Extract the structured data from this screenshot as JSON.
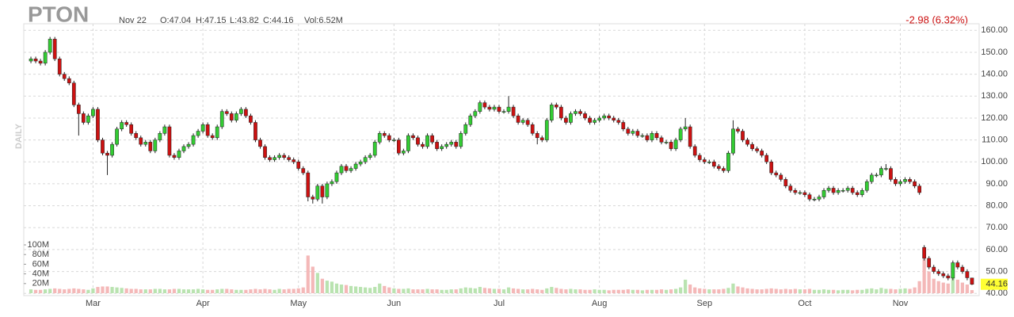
{
  "header": {
    "ticker": "PTON",
    "date": "Nov 22",
    "open": "O:47.04",
    "high": "H:47.15",
    "low": "L:43.82",
    "close": "C:44.16",
    "volume": "Vol:6.52M",
    "change": "-2.98 (6.32%)",
    "period": "DAILY"
  },
  "chart_data": {
    "type": "candlestick",
    "xlim": [
      -1.5,
      198.5
    ],
    "xticks": [
      {
        "value": 13,
        "label": "Mar"
      },
      {
        "value": 36,
        "label": "Apr"
      },
      {
        "value": 56,
        "label": "May"
      },
      {
        "value": 76,
        "label": "Jun"
      },
      {
        "value": 98,
        "label": "Jul"
      },
      {
        "value": 119,
        "label": "Aug"
      },
      {
        "value": 141,
        "label": "Sep"
      },
      {
        "value": 162,
        "label": "Oct"
      },
      {
        "value": 182,
        "label": "Nov"
      }
    ],
    "ylim": [
      39,
      163
    ],
    "yticks": [
      {
        "value": 40,
        "label": "40.00"
      },
      {
        "value": 50,
        "label": "50.00"
      },
      {
        "value": 60,
        "label": "60.00"
      },
      {
        "value": 70,
        "label": "70.00"
      },
      {
        "value": 80,
        "label": "80.00"
      },
      {
        "value": 90,
        "label": "90.00"
      },
      {
        "value": 100,
        "label": "100.00"
      },
      {
        "value": 110,
        "label": "110.00"
      },
      {
        "value": 120,
        "label": "120.00"
      },
      {
        "value": 130,
        "label": "130.00"
      },
      {
        "value": 140,
        "label": "140.00"
      },
      {
        "value": 150,
        "label": "150.00"
      },
      {
        "value": 160,
        "label": "160.00"
      }
    ],
    "y2lim": [
      0,
      100
    ],
    "y2ticks": [
      {
        "value": 20,
        "label": "20M"
      },
      {
        "value": 40,
        "label": "40M"
      },
      {
        "value": 60,
        "label": "60M"
      },
      {
        "value": 80,
        "label": "80M"
      },
      {
        "value": 100,
        "label": "100M"
      }
    ],
    "grid": true,
    "up_color": "#33cc33",
    "down_color": "#cc1111",
    "volume_up_color": "#b9e3b0",
    "volume_down_color": "#f4b8b8",
    "last_price_color": "#ffff33",
    "open": [
      146,
      147,
      146,
      145,
      150,
      156,
      147,
      140,
      138,
      136,
      126,
      122,
      118,
      121,
      124,
      110,
      104,
      103,
      108,
      115,
      118,
      117,
      113,
      111,
      108,
      109,
      105,
      110,
      113,
      116,
      103,
      102,
      105,
      107,
      108,
      112,
      114,
      117,
      112,
      111,
      116,
      123,
      122,
      119,
      122,
      124,
      121,
      118,
      110,
      107,
      102,
      101,
      102,
      103,
      102,
      101,
      100,
      97,
      95,
      84,
      83,
      89,
      84,
      90,
      91,
      95,
      98,
      96,
      97,
      99,
      100,
      102,
      103,
      109,
      113,
      112,
      110,
      110,
      104,
      105,
      112,
      111,
      108,
      107,
      112,
      109,
      106,
      107,
      108,
      109,
      107,
      113,
      117,
      121,
      123,
      127,
      125,
      124,
      125,
      123,
      123,
      125,
      121,
      118,
      119,
      117,
      113,
      111,
      110,
      119,
      126,
      125,
      120,
      118,
      122,
      123,
      122,
      120,
      118,
      119,
      120,
      121,
      120,
      119,
      118,
      115,
      113,
      114,
      112,
      112,
      110,
      113,
      111,
      109,
      109,
      106,
      110,
      115,
      116,
      107,
      103,
      101,
      100,
      100,
      98,
      97,
      96,
      104,
      115,
      114,
      110,
      108,
      106,
      105,
      103,
      100,
      95,
      94,
      92,
      89,
      87,
      86,
      86,
      85,
      83,
      83,
      84,
      87,
      88,
      86,
      87,
      87,
      88,
      86,
      85,
      87,
      91,
      94,
      94,
      97,
      97,
      92,
      90,
      91,
      92,
      91,
      89,
      61,
      56,
      52,
      50,
      49,
      48,
      47,
      54,
      52,
      50,
      47.04
    ],
    "high": [
      148,
      148,
      147,
      151,
      157,
      157,
      148,
      141,
      139,
      137,
      127,
      123,
      122,
      125,
      125,
      111,
      105,
      109,
      116,
      119,
      119,
      118,
      114,
      112,
      110,
      110,
      111,
      114,
      117,
      117,
      104,
      106,
      108,
      109,
      113,
      115,
      118,
      118,
      113,
      117,
      124,
      124,
      123,
      123,
      125,
      125,
      122,
      119,
      111,
      108,
      103,
      103,
      104,
      104,
      103,
      102,
      101,
      98,
      96,
      85,
      90,
      90,
      91,
      92,
      96,
      99,
      99,
      98,
      100,
      101,
      103,
      104,
      110,
      114,
      114,
      113,
      111,
      111,
      106,
      113,
      113,
      112,
      109,
      113,
      113,
      110,
      108,
      109,
      110,
      110,
      114,
      118,
      122,
      124,
      128,
      128,
      126,
      126,
      126,
      124,
      130,
      126,
      122,
      120,
      120,
      118,
      114,
      112,
      120,
      127,
      127,
      126,
      121,
      123,
      124,
      124,
      123,
      121,
      120,
      121,
      122,
      122,
      121,
      120,
      119,
      116,
      115,
      115,
      113,
      113,
      114,
      114,
      112,
      110,
      110,
      111,
      116,
      120,
      117,
      108,
      104,
      102,
      101,
      101,
      99,
      98,
      105,
      119,
      116,
      115,
      111,
      109,
      107,
      106,
      104,
      101,
      96,
      95,
      93,
      90,
      88,
      87,
      87,
      86,
      84,
      85,
      88,
      89,
      89,
      88,
      88,
      89,
      89,
      87,
      88,
      92,
      95,
      95,
      98,
      99,
      98,
      93,
      92,
      93,
      93,
      92,
      90,
      62,
      57,
      53,
      51,
      50,
      49,
      55,
      55,
      53,
      51,
      47.15
    ],
    "low": [
      145,
      145,
      144,
      144,
      149,
      146,
      139,
      137,
      135,
      125,
      112,
      117,
      117,
      120,
      109,
      103,
      94,
      102,
      107,
      114,
      116,
      112,
      110,
      107,
      107,
      104,
      104,
      109,
      112,
      102,
      101,
      101,
      104,
      106,
      107,
      111,
      113,
      111,
      110,
      110,
      115,
      121,
      118,
      118,
      121,
      120,
      117,
      109,
      106,
      101,
      100,
      100,
      101,
      101,
      100,
      99,
      96,
      94,
      82,
      81,
      82,
      81,
      83,
      89,
      90,
      94,
      95,
      95,
      96,
      98,
      99,
      101,
      102,
      108,
      111,
      109,
      109,
      103,
      103,
      104,
      110,
      107,
      106,
      106,
      108,
      105,
      105,
      106,
      107,
      106,
      106,
      112,
      116,
      120,
      122,
      124,
      123,
      123,
      122,
      122,
      122,
      120,
      117,
      117,
      116,
      112,
      108,
      109,
      109,
      118,
      124,
      119,
      117,
      117,
      121,
      121,
      119,
      117,
      117,
      118,
      119,
      119,
      118,
      117,
      114,
      112,
      112,
      111,
      111,
      109,
      109,
      110,
      108,
      108,
      105,
      105,
      109,
      114,
      106,
      102,
      100,
      99,
      99,
      97,
      96,
      95,
      95,
      103,
      113,
      109,
      107,
      105,
      104,
      102,
      99,
      94,
      93,
      91,
      88,
      86,
      85,
      85,
      84,
      82,
      82,
      82,
      83,
      86,
      85,
      85,
      86,
      86,
      85,
      84,
      84,
      86,
      90,
      93,
      93,
      96,
      91,
      89,
      89,
      90,
      90,
      88,
      85,
      55,
      51,
      49,
      48,
      47,
      46,
      46,
      51,
      49,
      46,
      43.82
    ],
    "close": [
      147,
      146,
      145,
      150,
      156,
      147,
      140,
      138,
      136,
      126,
      122,
      118,
      121,
      124,
      110,
      104,
      103,
      108,
      115,
      118,
      117,
      113,
      111,
      108,
      109,
      105,
      110,
      113,
      116,
      103,
      102,
      105,
      107,
      108,
      112,
      114,
      117,
      112,
      111,
      116,
      123,
      122,
      119,
      122,
      124,
      121,
      118,
      110,
      107,
      102,
      101,
      102,
      103,
      102,
      101,
      100,
      97,
      95,
      84,
      83,
      89,
      84,
      90,
      91,
      95,
      98,
      96,
      97,
      99,
      100,
      102,
      103,
      109,
      113,
      112,
      110,
      110,
      104,
      105,
      112,
      111,
      108,
      107,
      112,
      109,
      106,
      107,
      108,
      109,
      107,
      113,
      117,
      121,
      123,
      127,
      125,
      124,
      125,
      123,
      123,
      125,
      121,
      118,
      119,
      117,
      113,
      111,
      110,
      119,
      126,
      125,
      120,
      118,
      122,
      123,
      122,
      120,
      118,
      119,
      120,
      121,
      120,
      119,
      118,
      115,
      113,
      114,
      112,
      112,
      110,
      113,
      111,
      109,
      109,
      106,
      110,
      115,
      116,
      107,
      103,
      101,
      100,
      100,
      98,
      97,
      96,
      104,
      115,
      114,
      110,
      108,
      106,
      105,
      103,
      100,
      95,
      94,
      92,
      89,
      87,
      86,
      86,
      85,
      83,
      83,
      84,
      87,
      88,
      86,
      87,
      87,
      88,
      86,
      85,
      87,
      91,
      94,
      94,
      97,
      97,
      92,
      90,
      91,
      92,
      91,
      89,
      86,
      56,
      52,
      50,
      49,
      48,
      47,
      54,
      52,
      50,
      47.14,
      44.16
    ],
    "volume": [
      8,
      7,
      7,
      8,
      9,
      10,
      9,
      8,
      9,
      10,
      9,
      8,
      7,
      10,
      13,
      14,
      14,
      13,
      12,
      11,
      10,
      9,
      9,
      8,
      8,
      8,
      9,
      9,
      8,
      8,
      9,
      9,
      8,
      8,
      8,
      9,
      8,
      7,
      7,
      8,
      9,
      9,
      8,
      7,
      7,
      7,
      8,
      9,
      8,
      9,
      8,
      7,
      9,
      8,
      9,
      9,
      10,
      12,
      78,
      55,
      42,
      30,
      26,
      24,
      20,
      18,
      17,
      15,
      14,
      13,
      12,
      11,
      13,
      20,
      15,
      12,
      10,
      9,
      9,
      10,
      8,
      8,
      8,
      9,
      8,
      8,
      7,
      7,
      8,
      8,
      10,
      12,
      11,
      10,
      13,
      11,
      10,
      9,
      9,
      8,
      12,
      10,
      9,
      8,
      8,
      9,
      8,
      7,
      10,
      13,
      11,
      9,
      8,
      9,
      8,
      8,
      7,
      7,
      8,
      7,
      7,
      6,
      7,
      7,
      7,
      8,
      7,
      7,
      6,
      7,
      7,
      7,
      8,
      7,
      8,
      9,
      12,
      28,
      18,
      12,
      10,
      9,
      8,
      8,
      8,
      9,
      11,
      20,
      14,
      12,
      10,
      9,
      8,
      8,
      9,
      10,
      9,
      8,
      9,
      8,
      9,
      8,
      8,
      9,
      7,
      7,
      8,
      7,
      7,
      6,
      7,
      7,
      6,
      7,
      7,
      9,
      10,
      8,
      11,
      9,
      9,
      8,
      9,
      10,
      9,
      12,
      25,
      70,
      45,
      30,
      25,
      22,
      20,
      42,
      28,
      22,
      18,
      6.52
    ]
  }
}
